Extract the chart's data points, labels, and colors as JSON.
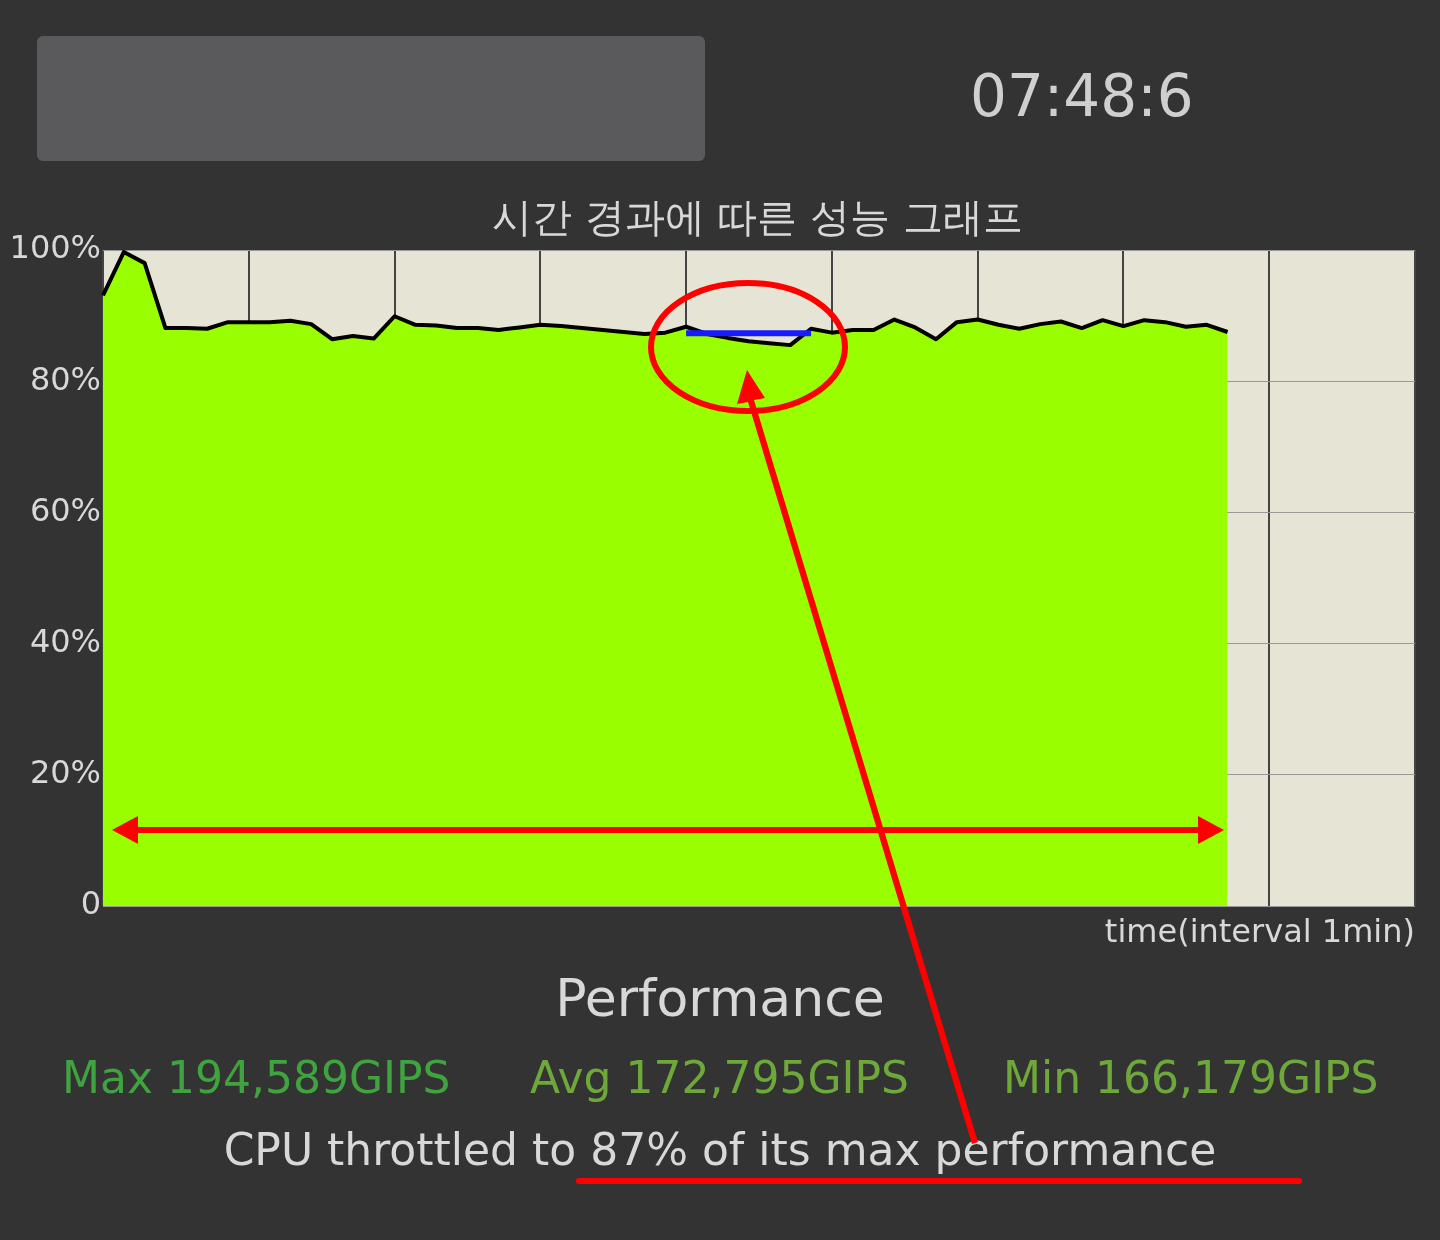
{
  "chart_data": {
    "type": "area",
    "title": "시간 경과에 따른 성능 그래프",
    "xlabel": "time(interval 1min)",
    "categories": [
      null,
      null,
      null,
      null,
      null,
      null,
      null,
      null,
      null,
      null,
      null,
      null,
      null,
      null,
      null,
      null,
      null,
      null,
      null,
      null,
      null,
      null,
      null,
      null,
      null,
      null,
      null,
      null,
      null,
      null,
      null,
      null,
      null,
      null,
      null,
      null,
      null,
      null,
      null,
      null,
      null,
      null,
      null,
      null,
      null,
      null,
      null,
      null,
      null,
      null,
      null,
      null,
      null,
      null,
      null,
      null,
      null,
      null,
      null,
      null,
      null,
      null,
      null,
      null
    ],
    "ylim": [
      0,
      100
    ],
    "yticks": [
      {
        "value": 0,
        "label": "0"
      },
      {
        "value": 20,
        "label": "20%"
      },
      {
        "value": 40,
        "label": "40%"
      },
      {
        "value": 60,
        "label": "60%"
      },
      {
        "value": 80,
        "label": "80%"
      },
      {
        "value": 100,
        "label": "100%"
      }
    ],
    "grid": true,
    "legend": false,
    "series": [
      {
        "type": "area",
        "color": "#99ff00",
        "values": [
          93.1,
          99.7,
          98,
          88.1,
          88.1,
          88,
          89,
          89,
          89,
          89.2,
          88.7,
          86.4,
          86.9,
          86.5,
          89.9,
          88.6,
          88.5,
          88.1,
          88.1,
          87.8,
          88.2,
          88.6,
          88.4,
          88.1,
          87.8,
          87.5,
          87.2,
          87.4,
          88.3,
          87.2,
          86.6,
          86.1,
          85.8,
          85.5,
          88,
          87.4,
          87.8,
          87.8,
          89.4,
          88.2,
          86.4,
          89,
          89.4,
          88.6,
          88,
          88.7,
          89.1,
          88.1,
          89.3,
          88.4,
          89.3,
          89,
          88.3,
          88.6,
          87.5,
          null,
          null,
          null,
          null,
          null,
          null,
          null,
          null,
          null
        ]
      },
      {
        "type": "line",
        "color": "#1a1aff",
        "values": [
          null,
          null,
          null,
          null,
          null,
          null,
          null,
          null,
          null,
          null,
          null,
          null,
          null,
          null,
          null,
          null,
          null,
          null,
          null,
          null,
          null,
          null,
          null,
          null,
          null,
          null,
          null,
          null,
          87.3,
          87.3,
          87.3,
          87.3,
          87.3,
          87.3,
          87.3,
          null,
          null,
          null,
          null,
          null,
          null,
          null,
          null,
          null,
          null,
          null,
          null,
          null,
          null,
          null,
          null,
          null,
          null,
          null,
          null,
          null,
          null,
          null,
          null,
          null,
          null,
          null,
          null,
          null
        ]
      }
    ],
    "annotations": [
      "07:48:6",
      "Performance",
      "Max 194,589GIPS",
      "Avg 172,795GIPS",
      "Min 166,179GIPS",
      "CPU throttled to 87% of its max performance"
    ]
  }
}
